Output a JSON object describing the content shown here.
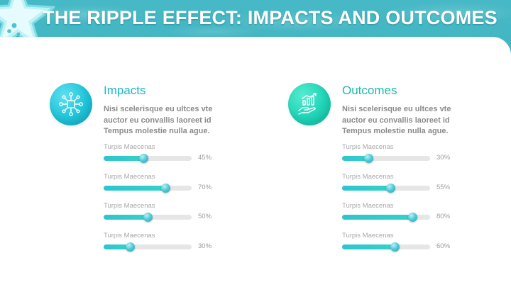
{
  "title": "THE RIPPLE EFFECT: IMPACTS AND OUTCOMES",
  "colors": {
    "header_background": "#2aa5b4",
    "impacts_accent": "#1cb8c8",
    "outcomes_accent": "#1fb8a8",
    "bar_track": "#e6e6e6",
    "bar_fill": "#2ec4cf"
  },
  "columns": [
    {
      "icon": "network-icon",
      "heading": "Impacts",
      "description": "Nisi scelerisque eu ultces vte auctor eu convallis laoreet id Tempus molestie nulla ague.",
      "bars": [
        {
          "label": "Turpis Maecenas",
          "value": 45,
          "percent": "45%"
        },
        {
          "label": "Turpis Maecenas",
          "value": 70,
          "percent": "70%"
        },
        {
          "label": "Turpis Maecenas",
          "value": 50,
          "percent": "50%"
        },
        {
          "label": "Turpis Maecenas",
          "value": 30,
          "percent": "30%"
        }
      ]
    },
    {
      "icon": "growth-chart-hand-icon",
      "heading": "Outcomes",
      "description": "Nisi scelerisque eu ultces vte auctor eu convallis laoreet id Tempus molestie nulla ague.",
      "bars": [
        {
          "label": "Turpis Maecenas",
          "value": 30,
          "percent": "30%"
        },
        {
          "label": "Turpis Maecenas",
          "value": 55,
          "percent": "55%"
        },
        {
          "label": "Turpis Maecenas",
          "value": 80,
          "percent": "80%"
        },
        {
          "label": "Turpis Maecenas",
          "value": 60,
          "percent": "60%"
        }
      ]
    }
  ]
}
